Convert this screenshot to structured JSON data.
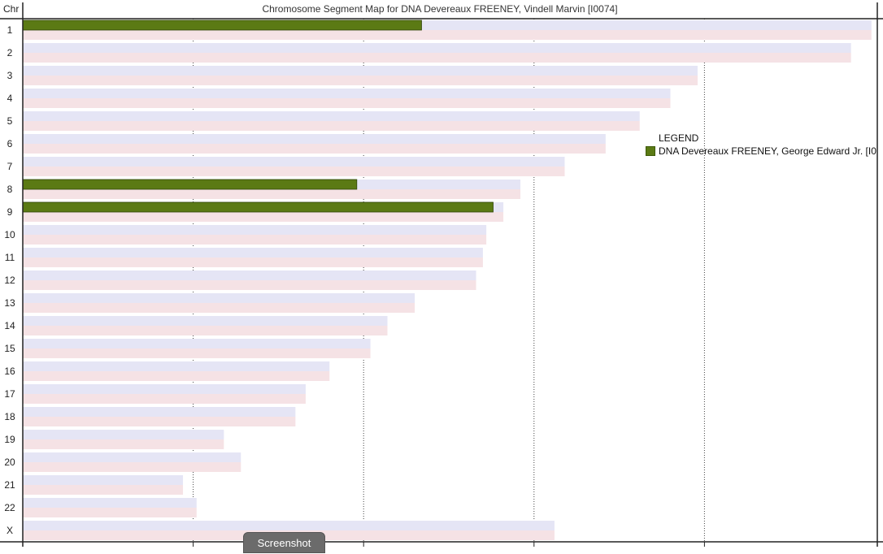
{
  "chart_data": {
    "type": "bar",
    "title": "Chromosome Segment Map for DNA Devereaux FREENEY, Vindell Marvin [I0074]",
    "header_label": "Chr",
    "categories": [
      "1",
      "2",
      "3",
      "4",
      "5",
      "6",
      "7",
      "8",
      "9",
      "10",
      "11",
      "12",
      "13",
      "14",
      "15",
      "16",
      "17",
      "18",
      "19",
      "20",
      "21",
      "22",
      "X"
    ],
    "chromosome_lengths": [
      249,
      243,
      198,
      190,
      181,
      171,
      159,
      146,
      141,
      136,
      135,
      133,
      115,
      107,
      102,
      90,
      83,
      80,
      59,
      64,
      47,
      51,
      156
    ],
    "series": [
      {
        "name": "DNA Devereaux FREENEY, George Edward Jr. [I0",
        "color": "#5b7a14",
        "segments": [
          {
            "chromosome": "1",
            "start": 0,
            "end": 117
          },
          {
            "chromosome": "8",
            "start": 0,
            "end": 98
          },
          {
            "chromosome": "9",
            "start": 0,
            "end": 138
          }
        ]
      }
    ],
    "xlim": [
      0,
      250
    ],
    "x_grid": [
      50,
      100,
      150,
      200
    ],
    "legend_title": "LEGEND",
    "legend_position": "right"
  },
  "colors": {
    "bar_upper": "#e5e5f5",
    "bar_lower": "#f5e2e5",
    "segment": "#5b7a14"
  },
  "screenshot_button": "Screenshot"
}
